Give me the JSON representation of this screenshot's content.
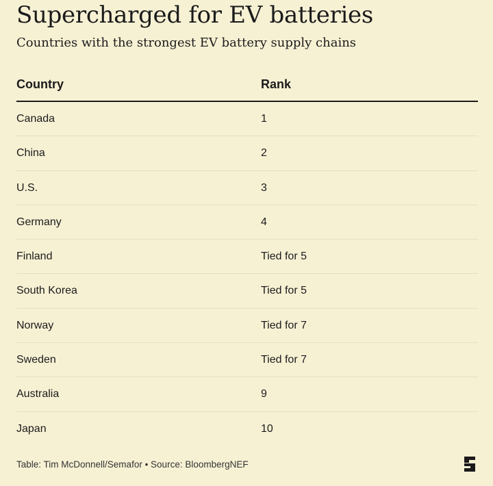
{
  "title": "Supercharged for EV batteries",
  "subtitle": "Countries with the strongest EV battery supply chains",
  "footer": "Table: Tim McDonnell/Semafor • Source: BloombergNEF",
  "logo": {
    "icon": "semafor-logo-icon",
    "text": "S",
    "color": "#1b1b1b"
  },
  "colors": {
    "background": "#f7f1d4",
    "text": "#1b1b1b",
    "row_divider": "#e6dfc2"
  },
  "chart_data": {
    "type": "table",
    "title": "Supercharged for EV batteries",
    "subtitle": "Countries with the strongest EV battery supply chains",
    "columns": [
      "Country",
      "Rank"
    ],
    "rows": [
      [
        "Canada",
        "1"
      ],
      [
        "China",
        "2"
      ],
      [
        "U.S.",
        "3"
      ],
      [
        "Germany",
        "4"
      ],
      [
        "Finland",
        "Tied for 5"
      ],
      [
        "South Korea",
        "Tied for 5"
      ],
      [
        "Norway",
        "Tied for 7"
      ],
      [
        "Sweden",
        "Tied for 7"
      ],
      [
        "Australia",
        "9"
      ],
      [
        "Japan",
        "10"
      ]
    ]
  }
}
